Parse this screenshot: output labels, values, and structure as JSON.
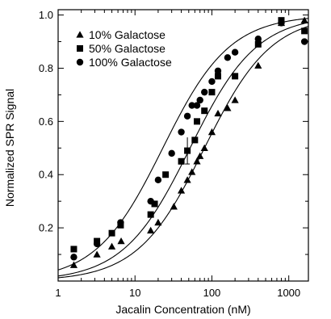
{
  "chart_data": {
    "type": "scatter",
    "title": "",
    "xlabel": "Jacalin Concentration (nM)",
    "ylabel": "Normalized SPR Signal",
    "xscale": "log",
    "xlim": [
      1,
      1800
    ],
    "ylim": [
      0,
      1.02
    ],
    "x_ticks": [
      1,
      10,
      100,
      1000
    ],
    "x_tick_labels": [
      "1",
      "10",
      "100",
      "1000"
    ],
    "y_ticks": [
      0.2,
      0.4,
      0.6,
      0.8,
      1.0
    ],
    "y_tick_labels": [
      "0.2",
      "0.4",
      "0.6",
      "0.8",
      "1.0"
    ],
    "grid": false,
    "legend_position": "top-left",
    "series": [
      {
        "name": "10% Galactose",
        "marker": "triangle",
        "color": "#000000",
        "x": [
          1.6,
          3.2,
          5.0,
          6.6,
          16,
          20,
          32,
          40,
          48,
          55,
          64,
          70,
          80,
          100,
          120,
          160,
          200,
          400,
          800,
          1600
        ],
        "y": [
          0.06,
          0.1,
          0.13,
          0.15,
          0.19,
          0.22,
          0.28,
          0.34,
          0.38,
          0.41,
          0.45,
          0.47,
          0.5,
          0.56,
          0.63,
          0.65,
          0.68,
          0.81,
          0.97,
          0.98
        ],
        "curve_k": 80,
        "curve_n": 1.0
      },
      {
        "name": "50% Galactose",
        "marker": "square",
        "color": "#000000",
        "x": [
          1.6,
          3.2,
          5.0,
          6.5,
          16,
          18,
          25,
          40,
          48,
          60,
          64,
          80,
          100,
          120,
          200,
          400,
          800,
          1600
        ],
        "y": [
          0.12,
          0.15,
          0.18,
          0.21,
          0.25,
          0.29,
          0.4,
          0.45,
          0.49,
          0.53,
          0.6,
          0.64,
          0.71,
          0.77,
          0.77,
          0.89,
          0.98,
          0.94
        ],
        "curve_k": 52,
        "curve_n": 1.0
      },
      {
        "name": "100% Galactose",
        "marker": "circle",
        "color": "#000000",
        "x": [
          1.6,
          3.2,
          6.5,
          16,
          20,
          30,
          40,
          48,
          55,
          64,
          70,
          80,
          100,
          120,
          160,
          200,
          400,
          800,
          1600
        ],
        "y": [
          0.09,
          0.14,
          0.22,
          0.3,
          0.38,
          0.48,
          0.56,
          0.62,
          0.66,
          0.66,
          0.68,
          0.71,
          0.75,
          0.79,
          0.84,
          0.86,
          0.91,
          0.97,
          0.9
        ],
        "curve_k": 23,
        "curve_n": 1.0
      }
    ]
  }
}
